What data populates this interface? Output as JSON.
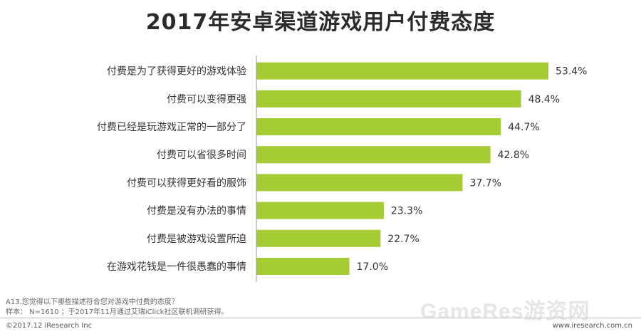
{
  "page": {
    "title": "2017年安卓渠道游戏用户付费态度",
    "footnote_question": "A13.您觉得以下哪些描述符合您对游戏中付费的态度？",
    "footnote_sample": "样本： N=1610 ；于2017年11月通过艾瑞iClick社区联机调研获得。",
    "copyright": "©2017.12 iResearch Inc",
    "website": "www.iresearch.com.cn",
    "watermark": "GameRes游资网"
  },
  "colors": {
    "bar": "#a5cc32",
    "axis": "#999999",
    "text": "#333333"
  },
  "chart_data": {
    "type": "bar",
    "orientation": "horizontal",
    "title": "2017年安卓渠道游戏用户付费态度",
    "categories": [
      "付费是为了获得更好的游戏体验",
      "付费可以变得更强",
      "付费已经是玩游戏正常的一部分了",
      "付费可以省很多时间",
      "付费可以获得更好看的服饰",
      "付费是没有办法的事情",
      "付费是被游戏设置所迫",
      "在游戏花钱是一件很愚蠢的事情"
    ],
    "values": [
      53.4,
      48.4,
      44.7,
      42.8,
      37.7,
      23.3,
      22.7,
      17.0
    ],
    "value_labels": [
      "53.4%",
      "48.4%",
      "44.7%",
      "42.8%",
      "37.7%",
      "23.3%",
      "22.7%",
      "17.0%"
    ],
    "xlim": [
      0,
      60
    ],
    "grid": false,
    "legend": "none"
  }
}
